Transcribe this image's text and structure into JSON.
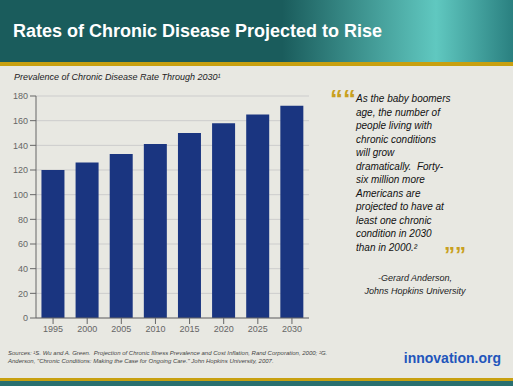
{
  "chart_data": {
    "type": "bar",
    "title": "Rates of Chronic Disease Projected to Rise",
    "subtitle": "Prevalence of Chronic Disease Rate Through 2030¹",
    "categories": [
      "1995",
      "2000",
      "2005",
      "2010",
      "2015",
      "2020",
      "2025",
      "2030"
    ],
    "values": [
      120,
      126,
      133,
      141,
      150,
      158,
      165,
      172
    ],
    "color": "#1a3580",
    "ylim": [
      0,
      180
    ],
    "yticks": [
      0,
      20,
      40,
      60,
      80,
      100,
      120,
      140,
      160,
      180
    ],
    "grid": true,
    "annotations": [
      "““",
      "As the baby boomers",
      "age, the number of",
      "people living with",
      "chronic conditions",
      "will grow",
      "dramatically.  Forty-",
      "six million more",
      "Americans are",
      "projected to have at",
      "least one chronic",
      "condition in 2030",
      "than in 2000.²",
      "””",
      "-Gerard Anderson,",
      "Johns Hopkins University",
      "Sources: ¹S. Wu and A. Green.  Projection of Chronic Illness Prevalence and Cost Inflation, Rand Corporation, 2000; ²G.",
      "Anderson, \"Chronic Conditions: Making the Case for Ongoing Care.\" John Hopkins University, 2007.",
      "innovation.org"
    ]
  }
}
